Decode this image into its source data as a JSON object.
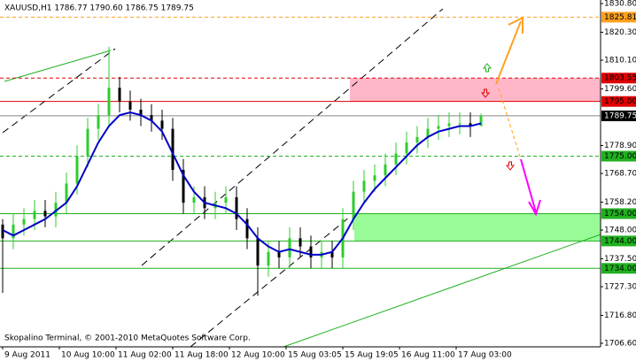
{
  "chart_data": {
    "type": "candlestick",
    "title": "XAUUSD,H1  1786.77 1790.60 1786.75 1789.75",
    "footer": "Skopalino Terminal, © 2001-2010 MetaQuotes Software Corp.",
    "xlim": [
      -0.75,
      168.75
    ],
    "xticks": [
      {
        "value": 0,
        "label": "9 Aug 2011"
      },
      {
        "value": 16,
        "label": "10 Aug 10:00"
      },
      {
        "value": 32,
        "label": "11 Aug 02:00"
      },
      {
        "value": 48,
        "label": "11 Aug 18:00"
      },
      {
        "value": 64,
        "label": "12 Aug 10:00"
      },
      {
        "value": 80,
        "label": "15 Aug 03:05"
      },
      {
        "value": 96,
        "label": "15 Aug 19:05"
      },
      {
        "value": 112,
        "label": "16 Aug 11:00"
      },
      {
        "value": 128,
        "label": "17 Aug 03:00"
      }
    ],
    "ylim": [
      1705.31,
      1832.09
    ],
    "yticks": [
      {
        "value": 1830.8,
        "label": "1830.80"
      },
      {
        "value": 1820.3,
        "label": "1820.30"
      },
      {
        "value": 1810.1,
        "label": "1810.10"
      },
      {
        "value": 1799.6,
        "label": "1799.60"
      },
      {
        "value": 1778.9,
        "label": "1778.90"
      },
      {
        "value": 1768.7,
        "label": "1768.70"
      },
      {
        "value": 1758.2,
        "label": "1758.20"
      },
      {
        "value": 1748.0,
        "label": "1748.00"
      },
      {
        "value": 1737.5,
        "label": "1737.50"
      },
      {
        "value": 1727.3,
        "label": "1727.30"
      },
      {
        "value": 1716.8,
        "label": "1716.80"
      },
      {
        "value": 1706.6,
        "label": "1706.60"
      }
    ],
    "x": [
      0,
      3,
      6,
      9,
      12,
      15,
      18,
      21,
      24,
      27,
      30,
      33,
      36,
      39,
      42,
      45,
      48,
      51,
      54,
      57,
      60,
      63,
      66,
      69,
      72,
      75,
      78,
      81,
      84,
      87,
      90,
      93,
      96,
      99,
      102,
      105,
      108,
      111,
      114,
      117,
      120,
      123,
      126,
      129,
      132,
      135
    ],
    "open": [
      1750,
      1745,
      1750,
      1752,
      1755,
      1753,
      1758,
      1765,
      1775,
      1785,
      1790,
      1800,
      1795,
      1792,
      1790,
      1788,
      1785,
      1770,
      1758,
      1760,
      1756,
      1758,
      1760,
      1752,
      1745,
      1735,
      1740,
      1738,
      1745,
      1742,
      1738,
      1740,
      1738,
      1752,
      1762,
      1766,
      1768,
      1772,
      1776,
      1780,
      1782,
      1785,
      1786,
      1787,
      1787,
      1786
    ],
    "high": [
      1752,
      1754,
      1756,
      1759,
      1759,
      1762,
      1769,
      1779,
      1789,
      1794,
      1815,
      1804,
      1799,
      1796,
      1794,
      1792,
      1789,
      1774,
      1764,
      1764,
      1762,
      1764,
      1764,
      1756,
      1749,
      1744,
      1744,
      1749,
      1749,
      1746,
      1744,
      1744,
      1756,
      1766,
      1770,
      1772,
      1776,
      1780,
      1784,
      1786,
      1789,
      1790,
      1791,
      1791,
      1791,
      1790.6
    ],
    "low": [
      1725,
      1741,
      1746,
      1748,
      1749,
      1749,
      1754,
      1761,
      1771,
      1781,
      1786,
      1791,
      1788,
      1786,
      1784,
      1781,
      1766,
      1754,
      1754,
      1752,
      1752,
      1754,
      1748,
      1741,
      1724,
      1731,
      1734,
      1734,
      1738,
      1734,
      1734,
      1734,
      1734,
      1748,
      1758,
      1762,
      1764,
      1768,
      1772,
      1776,
      1778,
      1781,
      1782,
      1783,
      1782,
      1786.75
    ],
    "close": [
      1745,
      1750,
      1752,
      1755,
      1753,
      1758,
      1765,
      1775,
      1785,
      1790,
      1800,
      1795,
      1792,
      1790,
      1788,
      1785,
      1770,
      1758,
      1760,
      1756,
      1758,
      1760,
      1752,
      1745,
      1735,
      1740,
      1738,
      1745,
      1742,
      1738,
      1740,
      1738,
      1752,
      1762,
      1766,
      1768,
      1772,
      1776,
      1780,
      1782,
      1785,
      1786,
      1787,
      1787,
      1786,
      1789.75
    ],
    "up_color": "#2ecc2e",
    "down_color": "#000000",
    "moving_average": {
      "color": "#0000c8",
      "values": [
        1748,
        1746,
        1748,
        1750,
        1752,
        1755,
        1758,
        1764,
        1772,
        1780,
        1786,
        1790,
        1791,
        1790,
        1788,
        1784,
        1776,
        1768,
        1762,
        1758,
        1757,
        1756,
        1754,
        1750,
        1745,
        1742,
        1740,
        1741,
        1740,
        1739,
        1739,
        1740,
        1745,
        1752,
        1758,
        1763,
        1767,
        1771,
        1775,
        1779,
        1782,
        1784,
        1785,
        1786,
        1786,
        1787
      ]
    },
    "zones": [
      {
        "from": 1795.0,
        "to": 1803.55,
        "color": "#ffb6c8"
      },
      {
        "from": 1744.0,
        "to": 1754.0,
        "color": "#98fb98"
      }
    ],
    "levels": [
      {
        "value": 1825.81,
        "label": "1825.81",
        "color": "#ffa020",
        "style": "dashed"
      },
      {
        "value": 1803.55,
        "label": "1803.55",
        "color": "#e00000",
        "style": "dashed"
      },
      {
        "value": 1795.0,
        "label": "1795.00",
        "color": "#e00000",
        "style": "solid"
      },
      {
        "value": 1789.75,
        "label": "1789.75",
        "color": "#000000",
        "style": "current"
      },
      {
        "value": 1775.0,
        "label": "1775.00",
        "color": "#20b020",
        "style": "dashed"
      },
      {
        "value": 1754.0,
        "label": "1754.00",
        "color": "#20b020",
        "style": "solid"
      },
      {
        "value": 1744.0,
        "label": "1744.00",
        "color": "#20b020",
        "style": "solid"
      },
      {
        "value": 1734.0,
        "label": "1734.00",
        "color": "#20b020",
        "style": "solid"
      }
    ]
  }
}
